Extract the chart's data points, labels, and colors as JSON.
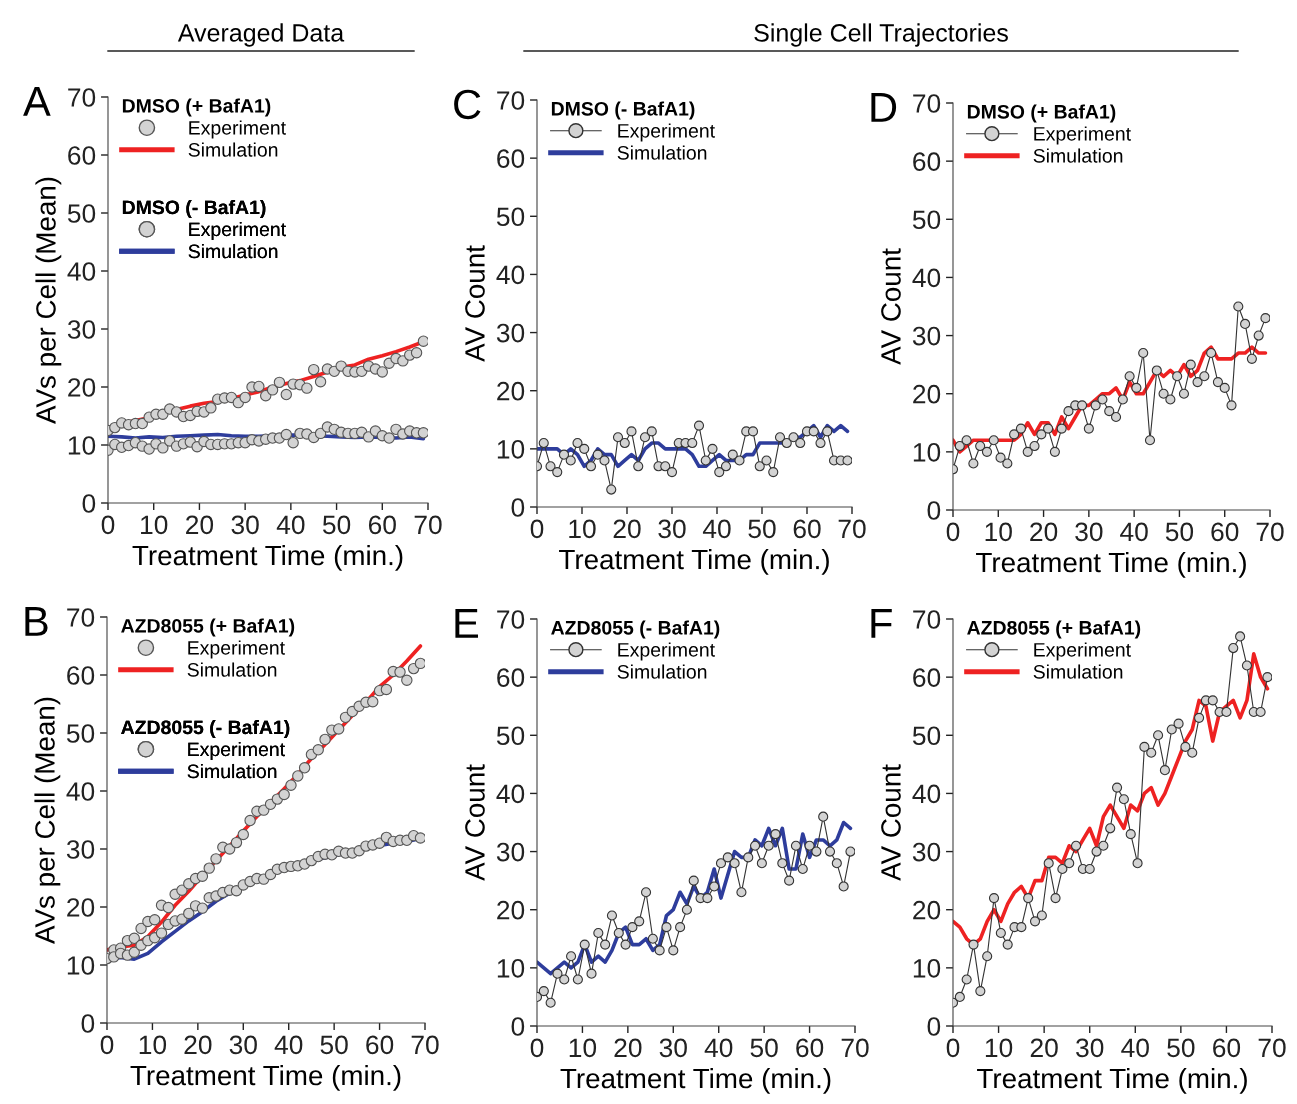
{
  "chart_data": [
    {
      "type": "line",
      "title": "A",
      "annotations": [
        "Averaged Data"
      ],
      "xlabel": "Treatment Time (min.)",
      "ylabel": "AVs per Cell (Mean)",
      "xlim": [
        0,
        70
      ],
      "xticks": [
        0,
        10,
        20,
        30,
        40,
        50,
        60,
        70
      ],
      "ylim": [
        0,
        70
      ],
      "yticks": [
        0,
        10,
        20,
        30,
        40,
        50,
        60,
        70
      ],
      "grid": false,
      "legend": "top left",
      "legend_title": [
        "DMSO (+ BafA1)",
        "DMSO (- BafA1)"
      ],
      "x": [
        0,
        1.5,
        3,
        4.5,
        6,
        7.5,
        9,
        10.5,
        12,
        13.5,
        15,
        16.5,
        18,
        19.5,
        21,
        22.5,
        24,
        25.5,
        27,
        28.5,
        30,
        31.5,
        33,
        34.5,
        36,
        37.5,
        39,
        40.5,
        42,
        43.5,
        45,
        46.5,
        48,
        49.5,
        51,
        52.5,
        54,
        55.5,
        57,
        58.5,
        60,
        61.5,
        63,
        64.5,
        66,
        67.5,
        69
      ],
      "series": [
        {
          "name": "Experiment",
          "type": "scatter",
          "marker": "circle",
          "color": "#d3d3d3",
          "values": [
            12.5,
            13.0,
            13.8,
            13.5,
            13.7,
            13.7,
            14.8,
            15.3,
            15.3,
            16.2,
            15.7,
            14.9,
            15.1,
            15.8,
            15.7,
            16.4,
            17.9,
            18.1,
            18.2,
            17.3,
            18.2,
            20.0,
            20.1,
            18.5,
            19.5,
            20.8,
            18.7,
            20.5,
            20.4,
            19.8,
            23.0,
            20.9,
            23.1,
            22.7,
            23.6,
            22.7,
            22.6,
            22.7,
            23.6,
            23.1,
            22.6,
            24.1,
            24.9,
            24.5,
            25.5,
            25.9,
            27.9
          ]
        },
        {
          "name": "Simulation",
          "type": "line",
          "color": "#ee2222",
          "x": [
            0,
            3,
            6,
            9,
            12,
            15,
            18,
            21,
            24,
            27,
            30,
            33,
            36,
            39,
            42,
            45,
            48,
            51,
            54,
            57,
            60,
            63,
            66,
            69
          ],
          "values": [
            12.8,
            13.7,
            14.2,
            14.7,
            15.4,
            16.1,
            16.7,
            17.2,
            17.5,
            18.0,
            18.6,
            19.2,
            20.0,
            20.6,
            21.1,
            21.8,
            22.6,
            23.4,
            23.8,
            24.8,
            25.4,
            26.1,
            26.9,
            27.8
          ]
        },
        {
          "name": "Experiment",
          "type": "scatter",
          "marker": "circle",
          "color": "#d3d3d3",
          "values": [
            9.1,
            10.1,
            9.6,
            9.9,
            10.4,
            9.8,
            9.3,
            10.2,
            9.5,
            10.7,
            9.8,
            10.2,
            10.5,
            9.7,
            10.6,
            10.1,
            10.1,
            10.2,
            10.2,
            10.4,
            10.4,
            10.9,
            10.7,
            11.0,
            11.2,
            11.2,
            11.8,
            10.4,
            12.0,
            11.9,
            11.3,
            12.0,
            13.1,
            12.7,
            12.2,
            12.0,
            12.0,
            12.2,
            11.4,
            12.4,
            11.6,
            11.2,
            12.7,
            11.9,
            12.4,
            12.1,
            12.1
          ]
        },
        {
          "name": "Simulation",
          "type": "line",
          "color": "#2e3d9c",
          "x": [
            0,
            3,
            6,
            9,
            12,
            15,
            18,
            21,
            24,
            27,
            30,
            33,
            36,
            39,
            42,
            45,
            48,
            51,
            54,
            57,
            60,
            63,
            66,
            69
          ],
          "values": [
            11.5,
            11.4,
            11.2,
            11.4,
            11.3,
            11.5,
            11.6,
            11.7,
            11.8,
            11.6,
            11.5,
            11.5,
            11.6,
            11.7,
            11.7,
            11.6,
            11.5,
            11.4,
            11.3,
            11.4,
            11.3,
            11.2,
            11.4,
            11.1
          ]
        }
      ]
    },
    {
      "type": "line",
      "title": "C",
      "annotations": [
        "Single Cell Trajectories"
      ],
      "xlabel": "Treatment Time (min.)",
      "ylabel": "AV Count",
      "xlim": [
        0,
        70
      ],
      "xticks": [
        0,
        10,
        20,
        30,
        40,
        50,
        60,
        70
      ],
      "ylim": [
        0,
        70
      ],
      "yticks": [
        0,
        10,
        20,
        30,
        40,
        50,
        60,
        70
      ],
      "grid": false,
      "legend": "top left",
      "legend_title": "DMSO (- BafA1)",
      "x": [
        0,
        1.5,
        3,
        4.5,
        6,
        7.5,
        9,
        10.5,
        12,
        13.5,
        15,
        16.5,
        18,
        19.5,
        21,
        22.5,
        24,
        25.5,
        27,
        28.5,
        30,
        31.5,
        33,
        34.5,
        36,
        37.5,
        39,
        40.5,
        42,
        43.5,
        45,
        46.5,
        48,
        49.5,
        51,
        52.5,
        54,
        55.5,
        57,
        58.5,
        60,
        61.5,
        63,
        64.5,
        66,
        67.5,
        69
      ],
      "series": [
        {
          "name": "Experiment",
          "type": "line",
          "marker": "circle",
          "color": "#d3d3d3",
          "values": [
            7,
            11,
            7,
            6,
            9,
            8,
            11,
            10,
            7,
            9,
            8,
            3,
            12,
            11,
            13,
            7,
            12,
            13,
            7,
            7,
            6,
            11,
            11,
            11,
            14,
            8,
            10,
            6,
            7,
            9,
            8,
            13,
            13,
            7,
            8,
            6,
            12,
            11,
            12,
            11,
            13,
            13,
            11,
            13,
            8,
            8,
            8
          ]
        },
        {
          "name": "Simulation",
          "type": "line",
          "color": "#2e3d9c",
          "values": [
            10,
            10,
            10,
            10,
            9,
            10,
            9,
            7,
            8,
            10,
            9,
            9,
            7,
            8,
            9,
            8,
            10,
            11,
            11,
            10,
            10,
            10,
            10,
            9,
            7,
            7,
            8,
            9,
            8,
            8,
            8,
            9,
            9,
            11,
            11,
            11,
            11,
            11,
            12,
            12,
            13,
            14,
            12,
            14,
            13,
            14,
            13
          ]
        }
      ]
    },
    {
      "type": "line",
      "title": "D",
      "xlabel": "Treatment Time (min.)",
      "ylabel": "AV Count",
      "xlim": [
        0,
        70
      ],
      "xticks": [
        0,
        10,
        20,
        30,
        40,
        50,
        60,
        70
      ],
      "ylim": [
        0,
        70
      ],
      "yticks": [
        0,
        10,
        20,
        30,
        40,
        50,
        60,
        70
      ],
      "grid": false,
      "legend": "top left",
      "legend_title": "DMSO (+ BafA1)",
      "x": [
        0,
        1.5,
        3,
        4.5,
        6,
        7.5,
        9,
        10.5,
        12,
        13.5,
        15,
        16.5,
        18,
        19.5,
        21,
        22.5,
        24,
        25.5,
        27,
        28.5,
        30,
        31.5,
        33,
        34.5,
        36,
        37.5,
        39,
        40.5,
        42,
        43.5,
        45,
        46.5,
        48,
        49.5,
        51,
        52.5,
        54,
        55.5,
        57,
        58.5,
        60,
        61.5,
        63,
        64.5,
        66,
        67.5,
        69
      ],
      "series": [
        {
          "name": "Experiment",
          "type": "line",
          "marker": "circle",
          "color": "#d3d3d3",
          "values": [
            7,
            11,
            12,
            8,
            11,
            10,
            12,
            9,
            8,
            13,
            14,
            10,
            11,
            13,
            14,
            10,
            14,
            17,
            18,
            18,
            14,
            18,
            19,
            17,
            16,
            19,
            23,
            21,
            27,
            12,
            24,
            20,
            19,
            23,
            20,
            25,
            22,
            23,
            27,
            22,
            21,
            18,
            35,
            32,
            26,
            30,
            33
          ]
        },
        {
          "name": "Simulation",
          "type": "line",
          "color": "#ee2222",
          "values": [
            12,
            10,
            11,
            12,
            12,
            12,
            12,
            12,
            12,
            12,
            13,
            15,
            13,
            15,
            15,
            13,
            16,
            14,
            16,
            18,
            18,
            19,
            20,
            20,
            21,
            19,
            22,
            20,
            20,
            22,
            24,
            23,
            24,
            23,
            25,
            23,
            24,
            27,
            28,
            26,
            26,
            26,
            27,
            27,
            28,
            27,
            27
          ]
        }
      ]
    },
    {
      "type": "line",
      "title": "B",
      "xlabel": "Treatment Time (min.)",
      "ylabel": "AVs per Cell (Mean)",
      "xlim": [
        0,
        70
      ],
      "xticks": [
        0,
        10,
        20,
        30,
        40,
        50,
        60,
        70
      ],
      "ylim": [
        0,
        70
      ],
      "yticks": [
        0,
        10,
        20,
        30,
        40,
        50,
        60,
        70
      ],
      "grid": false,
      "legend": "top left",
      "legend_title": [
        "AZD8055 (+ BafA1)",
        "AZD8055 (- BafA1)"
      ],
      "x": [
        0,
        1.5,
        3,
        4.5,
        6,
        7.5,
        9,
        10.5,
        12,
        13.5,
        15,
        16.5,
        18,
        19.5,
        21,
        22.5,
        24,
        25.5,
        27,
        28.5,
        30,
        31.5,
        33,
        34.5,
        36,
        37.5,
        39,
        40.5,
        42,
        43.5,
        45,
        46.5,
        48,
        49.5,
        51,
        52.5,
        54,
        55.5,
        57,
        58.5,
        60,
        61.5,
        63,
        64.5,
        66,
        67.5,
        69
      ],
      "series": [
        {
          "name": "Experiment",
          "type": "scatter",
          "marker": "circle",
          "color": "#d3d3d3",
          "values": [
            11.1,
            12.6,
            12.9,
            14.2,
            14.6,
            16.3,
            17.5,
            17.8,
            20.3,
            19.9,
            22.2,
            22.9,
            24.0,
            24.9,
            25.3,
            26.7,
            28.3,
            30.3,
            30.0,
            31.1,
            32.5,
            34.9,
            36.5,
            36.7,
            37.7,
            38.6,
            39.4,
            41.0,
            42.6,
            44.0,
            46.3,
            47.1,
            48.9,
            50.5,
            50.7,
            52.7,
            53.7,
            54.6,
            55.3,
            55.4,
            57.3,
            57.5,
            60.6,
            60.5,
            59.1,
            61.1,
            62.0
          ]
        },
        {
          "name": "Simulation",
          "type": "line",
          "color": "#ee2222",
          "x": [
            0,
            3,
            6,
            9,
            12,
            15,
            18,
            21,
            24,
            27,
            30,
            33,
            36,
            39,
            42,
            45,
            48,
            51,
            54,
            57,
            60,
            63,
            66,
            69
          ],
          "values": [
            12.6,
            13.1,
            13.4,
            14.9,
            17.4,
            20.3,
            22.7,
            25.4,
            28.0,
            30.5,
            33.1,
            35.6,
            38.0,
            40.4,
            42.9,
            45.6,
            48.0,
            50.5,
            53.0,
            55.3,
            58.0,
            60.0,
            62.4,
            65.0
          ]
        },
        {
          "name": "Experiment",
          "type": "scatter",
          "marker": "circle",
          "color": "#d3d3d3",
          "values": [
            null,
            11.4,
            12.0,
            11.7,
            12.2,
            13.4,
            14.2,
            14.7,
            15.5,
            17.0,
            17.6,
            17.9,
            18.9,
            20.2,
            19.8,
            21.6,
            21.9,
            22.5,
            22.9,
            22.8,
            23.8,
            24.4,
            24.9,
            24.8,
            25.6,
            26.5,
            26.8,
            27.0,
            27.1,
            27.4,
            28.0,
            28.7,
            29.1,
            29.0,
            29.6,
            29.3,
            29.3,
            29.7,
            30.5,
            30.7,
            31.0,
            32.0,
            31.3,
            31.5,
            31.5,
            32.3,
            31.9
          ]
        },
        {
          "name": "Simulation",
          "type": "line",
          "color": "#2e3d9c",
          "x": [
            0,
            3,
            6,
            9,
            12,
            15,
            18,
            21,
            24,
            27,
            30,
            33,
            36,
            39,
            42,
            45,
            48,
            51,
            54,
            57,
            60,
            63,
            66,
            69
          ],
          "values": [
            11.0,
            11.3,
            11.0,
            12.0,
            14.0,
            15.8,
            17.6,
            19.2,
            21.0,
            22.4,
            23.6,
            24.6,
            25.6,
            26.5,
            27.2,
            28.0,
            28.5,
            29.0,
            29.5,
            30.1,
            30.6,
            31.0,
            31.3,
            31.8
          ]
        }
      ]
    },
    {
      "type": "line",
      "title": "E",
      "xlabel": "Treatment Time (min.)",
      "ylabel": "AV Count",
      "xlim": [
        0,
        70
      ],
      "xticks": [
        0,
        10,
        20,
        30,
        40,
        50,
        60,
        70
      ],
      "ylim": [
        0,
        70
      ],
      "yticks": [
        0,
        10,
        20,
        30,
        40,
        50,
        60,
        70
      ],
      "grid": false,
      "legend": "top left",
      "legend_title": "AZD8055 (- BafA1)",
      "x": [
        0,
        1.5,
        3,
        4.5,
        6,
        7.5,
        9,
        10.5,
        12,
        13.5,
        15,
        16.5,
        18,
        19.5,
        21,
        22.5,
        24,
        25.5,
        27,
        28.5,
        30,
        31.5,
        33,
        34.5,
        36,
        37.5,
        39,
        40.5,
        42,
        43.5,
        45,
        46.5,
        48,
        49.5,
        51,
        52.5,
        54,
        55.5,
        57,
        58.5,
        60,
        61.5,
        63,
        64.5,
        66,
        67.5,
        69
      ],
      "series": [
        {
          "name": "Experiment",
          "type": "line",
          "marker": "circle",
          "color": "#d3d3d3",
          "values": [
            5,
            6,
            4,
            9,
            8,
            12,
            8,
            14,
            9,
            16,
            14,
            19,
            16,
            14,
            17,
            18,
            23,
            15,
            13,
            17,
            13,
            17,
            20,
            25,
            22,
            22,
            24,
            28,
            29,
            28,
            23,
            29,
            31,
            28,
            31,
            33,
            28,
            25,
            31,
            27,
            31,
            30,
            36,
            30,
            28,
            24,
            30
          ]
        },
        {
          "name": "Simulation",
          "type": "line",
          "color": "#2e3d9c",
          "values": [
            11,
            10,
            9,
            10,
            11,
            10,
            11,
            14,
            11,
            12,
            11,
            13,
            16,
            17,
            14,
            14,
            15,
            13,
            14,
            19,
            20,
            23,
            21,
            24,
            22,
            23,
            27,
            22,
            26,
            30,
            29,
            29,
            32,
            31,
            34,
            31,
            34,
            27,
            27,
            33,
            29,
            32,
            32,
            31,
            32,
            35,
            34
          ]
        }
      ]
    },
    {
      "type": "line",
      "title": "F",
      "xlabel": "Treatment Time (min.)",
      "ylabel": "AV Count",
      "xlim": [
        0,
        70
      ],
      "xticks": [
        0,
        10,
        20,
        30,
        40,
        50,
        60,
        70
      ],
      "ylim": [
        0,
        70
      ],
      "yticks": [
        0,
        10,
        20,
        30,
        40,
        50,
        60,
        70
      ],
      "grid": false,
      "legend": "top left",
      "legend_title": "AZD8055 (+ BafA1)",
      "x": [
        0,
        1.5,
        3,
        4.5,
        6,
        7.5,
        9,
        10.5,
        12,
        13.5,
        15,
        16.5,
        18,
        19.5,
        21,
        22.5,
        24,
        25.5,
        27,
        28.5,
        30,
        31.5,
        33,
        34.5,
        36,
        37.5,
        39,
        40.5,
        42,
        43.5,
        45,
        46.5,
        48,
        49.5,
        51,
        52.5,
        54,
        55.5,
        57,
        58.5,
        60,
        61.5,
        63,
        64.5,
        66,
        67.5,
        69
      ],
      "series": [
        {
          "name": "Experiment",
          "type": "line",
          "marker": "circle",
          "color": "#d3d3d3",
          "values": [
            4,
            5,
            8,
            14,
            6,
            12,
            22,
            16,
            14,
            17,
            17,
            22,
            18,
            19,
            28,
            22,
            27,
            28,
            31,
            27,
            27,
            30,
            31,
            34,
            41,
            39,
            33,
            28,
            48,
            47,
            50,
            44,
            51,
            52,
            48,
            47,
            53,
            56,
            56,
            54,
            54,
            65,
            67,
            62,
            54,
            54,
            60
          ]
        },
        {
          "name": "Simulation",
          "type": "line",
          "color": "#ee2222",
          "values": [
            18,
            17,
            15,
            14,
            15,
            18,
            20,
            18,
            21,
            23,
            24,
            22,
            25,
            25,
            29,
            29,
            28,
            31,
            30,
            32,
            34,
            31,
            36,
            38,
            36,
            34,
            38,
            37,
            40,
            41,
            38,
            40,
            43,
            46,
            49,
            51,
            56,
            55,
            49,
            54,
            55,
            56,
            53,
            56,
            64,
            60,
            58
          ]
        }
      ]
    }
  ]
}
